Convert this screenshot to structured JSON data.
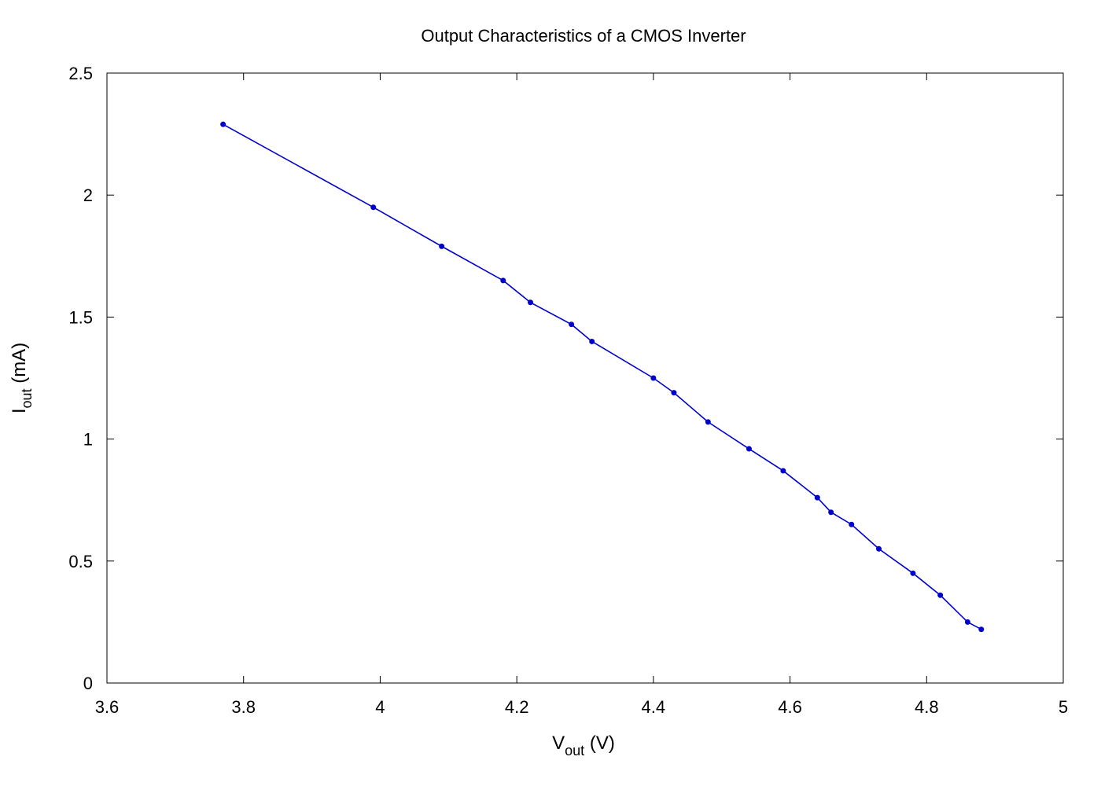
{
  "chart_data": {
    "type": "line",
    "title": "Output Characteristics of a CMOS Inverter",
    "xlabel": {
      "main": "V",
      "sub": "out",
      "unit": " (V)"
    },
    "ylabel": {
      "main": "I",
      "sub": "out",
      "unit": " (mA)"
    },
    "xlim": [
      3.6,
      5
    ],
    "ylim": [
      0,
      2.5
    ],
    "xticks": [
      "3.6",
      "3.8",
      "4",
      "4.2",
      "4.4",
      "4.6",
      "4.8",
      "5"
    ],
    "yticks": [
      "0",
      "0.5",
      "1",
      "1.5",
      "2",
      "2.5"
    ],
    "grid": false,
    "legend": "none",
    "series": [
      {
        "color": "#0000cc",
        "marker": "circle",
        "x": [
          3.77,
          3.99,
          4.09,
          4.18,
          4.22,
          4.28,
          4.31,
          4.4,
          4.43,
          4.48,
          4.54,
          4.59,
          4.64,
          4.66,
          4.69,
          4.73,
          4.78,
          4.82,
          4.86,
          4.88
        ],
        "y": [
          2.29,
          1.95,
          1.79,
          1.65,
          1.56,
          1.47,
          1.4,
          1.25,
          1.19,
          1.07,
          0.96,
          0.87,
          0.76,
          0.7,
          0.65,
          0.55,
          0.45,
          0.36,
          0.25,
          0.22
        ]
      }
    ]
  }
}
